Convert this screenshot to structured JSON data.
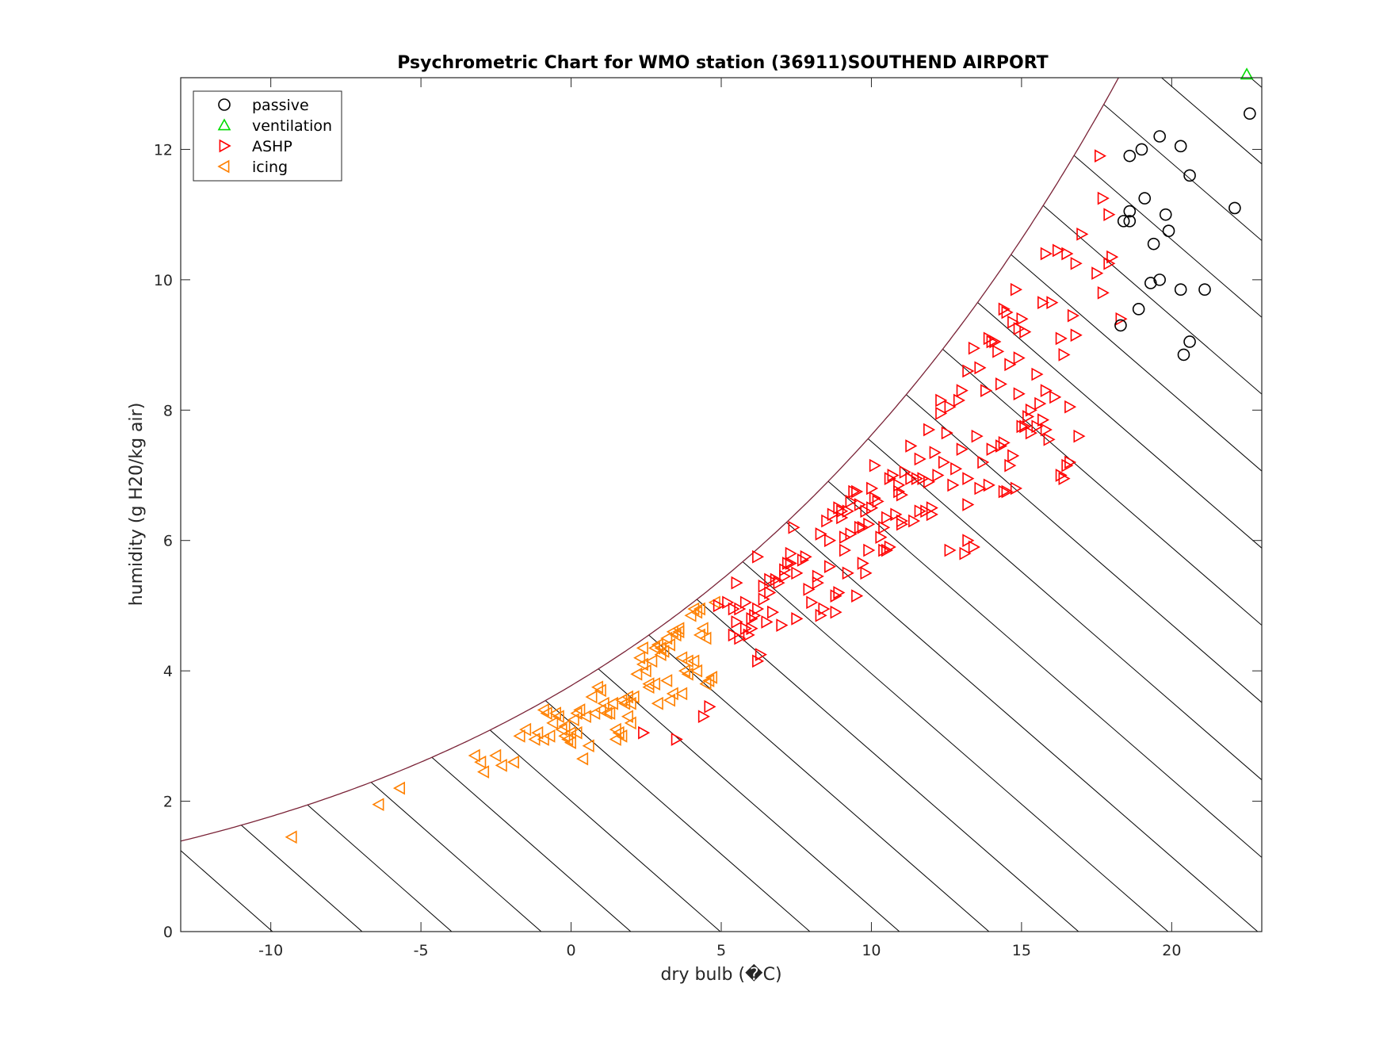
{
  "chart_data": {
    "type": "scatter",
    "title": "Psychrometric Chart for WMO station (36911)SOUTHEND AIRPORT",
    "xlabel": "dry bulb (�C)",
    "ylabel": "humidity (g H20/kg air)",
    "xlim": [
      -13,
      23
    ],
    "ylim": [
      0,
      13.1
    ],
    "xticks": [
      -10,
      -5,
      0,
      5,
      10,
      15,
      20
    ],
    "yticks": [
      0,
      2,
      4,
      6,
      8,
      10,
      12
    ],
    "grid": false,
    "legend_position": "top-left",
    "colors": {
      "saturation_curve": "#7a2337",
      "enthalpy_lines": "#000000",
      "passive": "#000000",
      "ventilation": "#00dd00",
      "ASHP": "#ff0000",
      "icing": "#ff8000"
    },
    "series": [
      {
        "name": "passive",
        "marker": "circle",
        "x": [
          18.6,
          19.0,
          19.6,
          20.3,
          20.6,
          22.6,
          19.1,
          18.4,
          18.6,
          18.6,
          19.8,
          19.9,
          19.4,
          22.1,
          19.3,
          19.6,
          20.3,
          21.1,
          18.9,
          18.3,
          20.6,
          20.4
        ],
        "y": [
          11.9,
          12.0,
          12.2,
          12.05,
          11.6,
          12.55,
          11.25,
          10.9,
          10.9,
          11.05,
          11.0,
          10.75,
          10.55,
          11.1,
          9.95,
          10.0,
          9.85,
          9.85,
          9.55,
          9.3,
          9.05,
          8.85
        ]
      },
      {
        "name": "ventilation",
        "marker": "triangle-up",
        "x": [
          22.5
        ],
        "y": [
          13.15
        ]
      },
      {
        "name": "ASHP",
        "marker": "triangle-right",
        "x": [
          17.6,
          17.7,
          17.9,
          17.0,
          16.5,
          16.2,
          15.8,
          16.8,
          18.0,
          17.9,
          17.5,
          16.7,
          17.7,
          18.3,
          14.5,
          15.0,
          14.8,
          16.0,
          16.8,
          16.3,
          15.1,
          14.0,
          14.2,
          14.6,
          13.6,
          14.9,
          15.5,
          14.3,
          13.2,
          13.8,
          14.9,
          13.0,
          12.6,
          12.3,
          12.5,
          13.5,
          14.4,
          14.7,
          15.0,
          15.2,
          15.6,
          16.1,
          16.6,
          16.9,
          16.5,
          15.8,
          15.3,
          14.0,
          14.6,
          13.0,
          12.2,
          11.9,
          11.0,
          10.5,
          12.7,
          13.2,
          13.6,
          14.4,
          13.7,
          13.2,
          13.2,
          11.8,
          11.4,
          11.0,
          10.4,
          10.0,
          9.6,
          9.0,
          9.3,
          9.5,
          10.6,
          11.1,
          11.7,
          12.1,
          12.8,
          11.6,
          10.9,
          10.1,
          9.8,
          8.7,
          8.3,
          8.6,
          9.1,
          9.6,
          10.3,
          10.6,
          10.0,
          9.4,
          9.0,
          8.5,
          8.6,
          9.2,
          9.7,
          10.4,
          7.5,
          7.1,
          6.6,
          6.2,
          6.0,
          6.6,
          7.1,
          7.7,
          8.2,
          8.9,
          9.5,
          8.4,
          8.0,
          7.5,
          7.0,
          6.5,
          6.0,
          5.6,
          5.2,
          5.5,
          6.2,
          6.8,
          7.2,
          7.8,
          8.3,
          8.8,
          7.9,
          7.3,
          6.9,
          6.4,
          5.8,
          5.4,
          5.6,
          6.3,
          5.9,
          6.2,
          5.5,
          4.9,
          2.4,
          3.5,
          4.4,
          4.6,
          10.1,
          10.7,
          11.3,
          11.9,
          10.9,
          10.2,
          9.7,
          9.2,
          9.1,
          9.9,
          10.5,
          11.0,
          11.5,
          12.4,
          12.0,
          13.9,
          14.1,
          14.7,
          14.4,
          13.4,
          12.9,
          12.3,
          16.3,
          16.6,
          16.4,
          15.5,
          15.7,
          15.9,
          14.3,
          15.1,
          15.3,
          15.8,
          13.9,
          14.5,
          14.8,
          12.0,
          11.6,
          9.8,
          8.8,
          8.2,
          7.3,
          6.7,
          6.4,
          6.1,
          5.8,
          5.4,
          7.4,
          8.9,
          9.3,
          9.9,
          10.8,
          11.3,
          12.6,
          13.1,
          13.4,
          14.9,
          15.7,
          16.4
        ],
        "y": [
          11.9,
          11.25,
          11.0,
          10.7,
          10.4,
          10.45,
          10.4,
          10.25,
          10.35,
          10.25,
          10.1,
          9.45,
          9.8,
          9.4,
          9.5,
          9.4,
          9.85,
          9.65,
          9.15,
          9.1,
          9.2,
          9.05,
          8.9,
          8.7,
          8.65,
          8.8,
          8.55,
          8.4,
          8.6,
          8.3,
          8.25,
          8.3,
          8.05,
          7.95,
          7.65,
          7.6,
          7.5,
          7.3,
          7.75,
          7.9,
          8.1,
          8.2,
          8.05,
          7.6,
          7.15,
          7.7,
          7.65,
          7.4,
          7.15,
          7.4,
          7.0,
          6.9,
          6.7,
          6.35,
          6.85,
          6.95,
          6.8,
          6.75,
          7.2,
          6.55,
          6.0,
          6.45,
          6.3,
          6.25,
          6.2,
          6.5,
          6.55,
          6.35,
          6.6,
          6.75,
          6.95,
          7.05,
          6.95,
          7.35,
          7.1,
          7.25,
          6.85,
          6.65,
          6.45,
          6.4,
          6.1,
          6.0,
          5.85,
          6.2,
          6.05,
          5.9,
          6.8,
          6.75,
          6.45,
          6.3,
          5.6,
          5.5,
          5.65,
          5.85,
          5.5,
          5.45,
          5.2,
          4.95,
          4.8,
          5.4,
          5.55,
          5.7,
          5.35,
          5.2,
          5.15,
          4.95,
          5.05,
          4.8,
          4.7,
          4.75,
          4.65,
          4.95,
          5.05,
          5.35,
          5.75,
          5.4,
          5.65,
          5.75,
          4.85,
          4.9,
          5.25,
          5.8,
          5.35,
          5.3,
          5.05,
          4.95,
          4.5,
          4.25,
          4.55,
          4.15,
          4.75,
          5.0,
          3.05,
          2.95,
          3.3,
          3.45,
          7.15,
          7.0,
          7.45,
          7.7,
          6.75,
          6.6,
          6.2,
          6.45,
          6.05,
          5.85,
          5.85,
          6.3,
          6.95,
          7.2,
          6.5,
          9.1,
          9.05,
          9.35,
          9.55,
          8.95,
          8.15,
          8.15,
          7.0,
          7.2,
          6.95,
          7.75,
          7.85,
          7.55,
          7.45,
          7.75,
          8.0,
          8.3,
          6.85,
          6.75,
          6.8,
          6.4,
          6.45,
          5.5,
          5.15,
          5.45,
          5.65,
          4.9,
          5.1,
          4.85,
          4.65,
          4.55,
          6.2,
          6.5,
          6.1,
          6.25,
          6.4,
          6.95,
          5.85,
          5.8,
          5.9,
          9.25,
          9.65,
          8.85
        ]
      },
      {
        "name": "icing",
        "marker": "triangle-left",
        "x": [
          -9.3,
          -6.4,
          -5.7,
          -3.2,
          -3.0,
          -2.9,
          -2.5,
          -2.3,
          -1.9,
          -1.7,
          -1.2,
          -1.1,
          -0.9,
          -0.8,
          -0.7,
          -0.6,
          -0.4,
          -0.3,
          -0.2,
          -0.1,
          0.0,
          0.1,
          0.2,
          0.3,
          0.5,
          0.7,
          0.9,
          1.0,
          1.1,
          1.2,
          1.4,
          1.5,
          1.6,
          1.7,
          1.8,
          1.9,
          2.0,
          2.1,
          2.2,
          2.3,
          2.4,
          2.5,
          2.6,
          2.7,
          2.8,
          2.9,
          3.0,
          3.1,
          3.2,
          3.3,
          3.4,
          3.5,
          3.6,
          3.7,
          3.8,
          3.9,
          4.0,
          4.1,
          4.2,
          4.3,
          4.4,
          4.5,
          4.6,
          4.7,
          0.0,
          -0.2,
          0.8,
          1.3,
          2.6,
          3.2,
          3.4,
          3.7,
          4.2,
          4.5,
          0.4,
          1.5,
          1.9,
          2.8,
          -0.9,
          0.2,
          1.7,
          2.4,
          3.0,
          3.6,
          4.1,
          -1.5,
          -0.5,
          0.6,
          1.0,
          2.0,
          2.9,
          3.3,
          3.9,
          4.3,
          4.8
        ],
        "y": [
          1.45,
          1.95,
          2.2,
          2.7,
          2.6,
          2.45,
          2.7,
          2.55,
          2.6,
          3.0,
          2.95,
          3.05,
          2.95,
          3.35,
          3.0,
          3.2,
          3.3,
          3.1,
          3.15,
          2.95,
          3.05,
          3.25,
          3.35,
          3.4,
          3.3,
          3.6,
          3.75,
          3.4,
          3.5,
          3.35,
          3.5,
          3.1,
          3.05,
          3.55,
          3.5,
          3.3,
          3.2,
          3.6,
          3.95,
          4.2,
          4.1,
          4.0,
          3.75,
          4.15,
          4.35,
          4.4,
          4.25,
          4.3,
          4.5,
          4.4,
          4.6,
          4.55,
          4.65,
          4.2,
          4.0,
          3.95,
          4.85,
          4.95,
          4.9,
          4.55,
          4.65,
          4.5,
          3.85,
          3.9,
          2.9,
          3.0,
          3.35,
          3.35,
          3.8,
          3.85,
          3.65,
          3.65,
          4.0,
          3.8,
          2.65,
          2.95,
          3.6,
          3.8,
          3.4,
          3.05,
          3.0,
          4.35,
          4.35,
          4.6,
          4.15,
          3.1,
          3.35,
          2.85,
          3.7,
          3.5,
          3.5,
          3.55,
          4.15,
          4.95,
          5.05
        ],
        "y_note": ""
      }
    ]
  }
}
